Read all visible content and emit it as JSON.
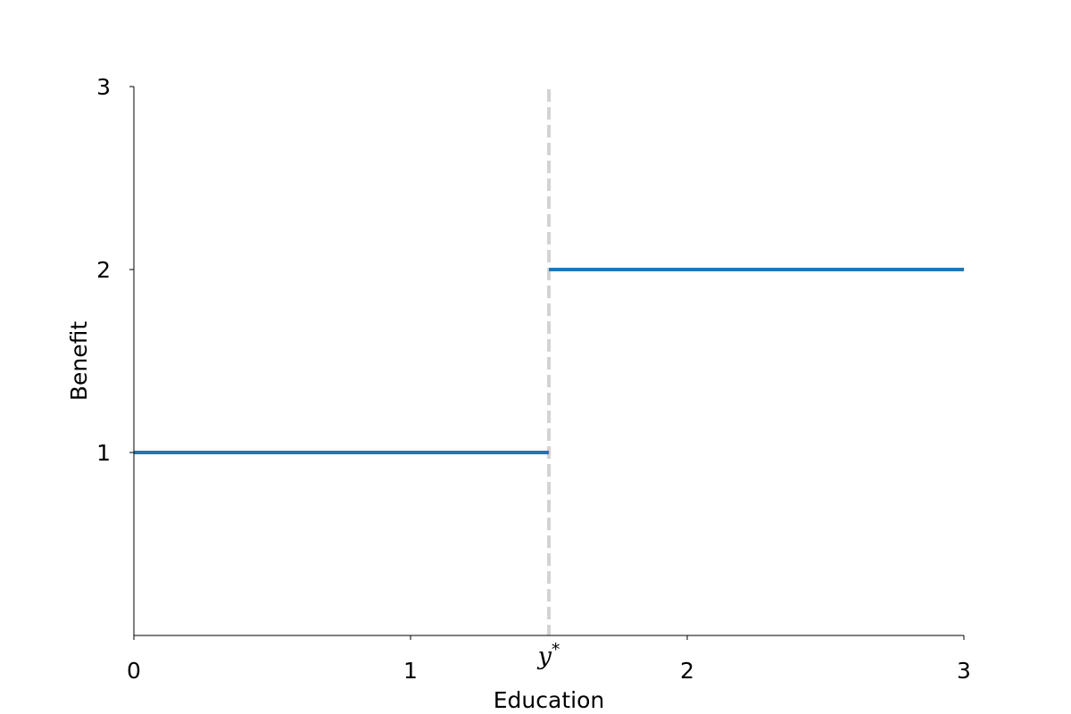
{
  "chart_data": {
    "type": "line",
    "title": "",
    "xlabel": "Education",
    "ylabel": "Benefit",
    "xlim": [
      0,
      3
    ],
    "ylim": [
      0,
      3
    ],
    "xticks": [
      0,
      1,
      2,
      3
    ],
    "xtick_labels": [
      "0",
      "1",
      "2",
      "3"
    ],
    "yticks": [
      1,
      2,
      3
    ],
    "ytick_labels": [
      "1",
      "2",
      "3"
    ],
    "grid": false,
    "legend": "none",
    "series": [
      {
        "color": "#1f77b4",
        "segments": [
          {
            "x": [
              0,
              1.5
            ],
            "y": [
              1,
              1
            ]
          },
          {
            "x": [
              1.5,
              3
            ],
            "y": [
              2,
              2
            ]
          }
        ]
      }
    ],
    "threshold": {
      "x": 1.5,
      "label_base": "y",
      "label_sup": "*",
      "color": "#d3d3d3",
      "style": "dashed"
    }
  }
}
